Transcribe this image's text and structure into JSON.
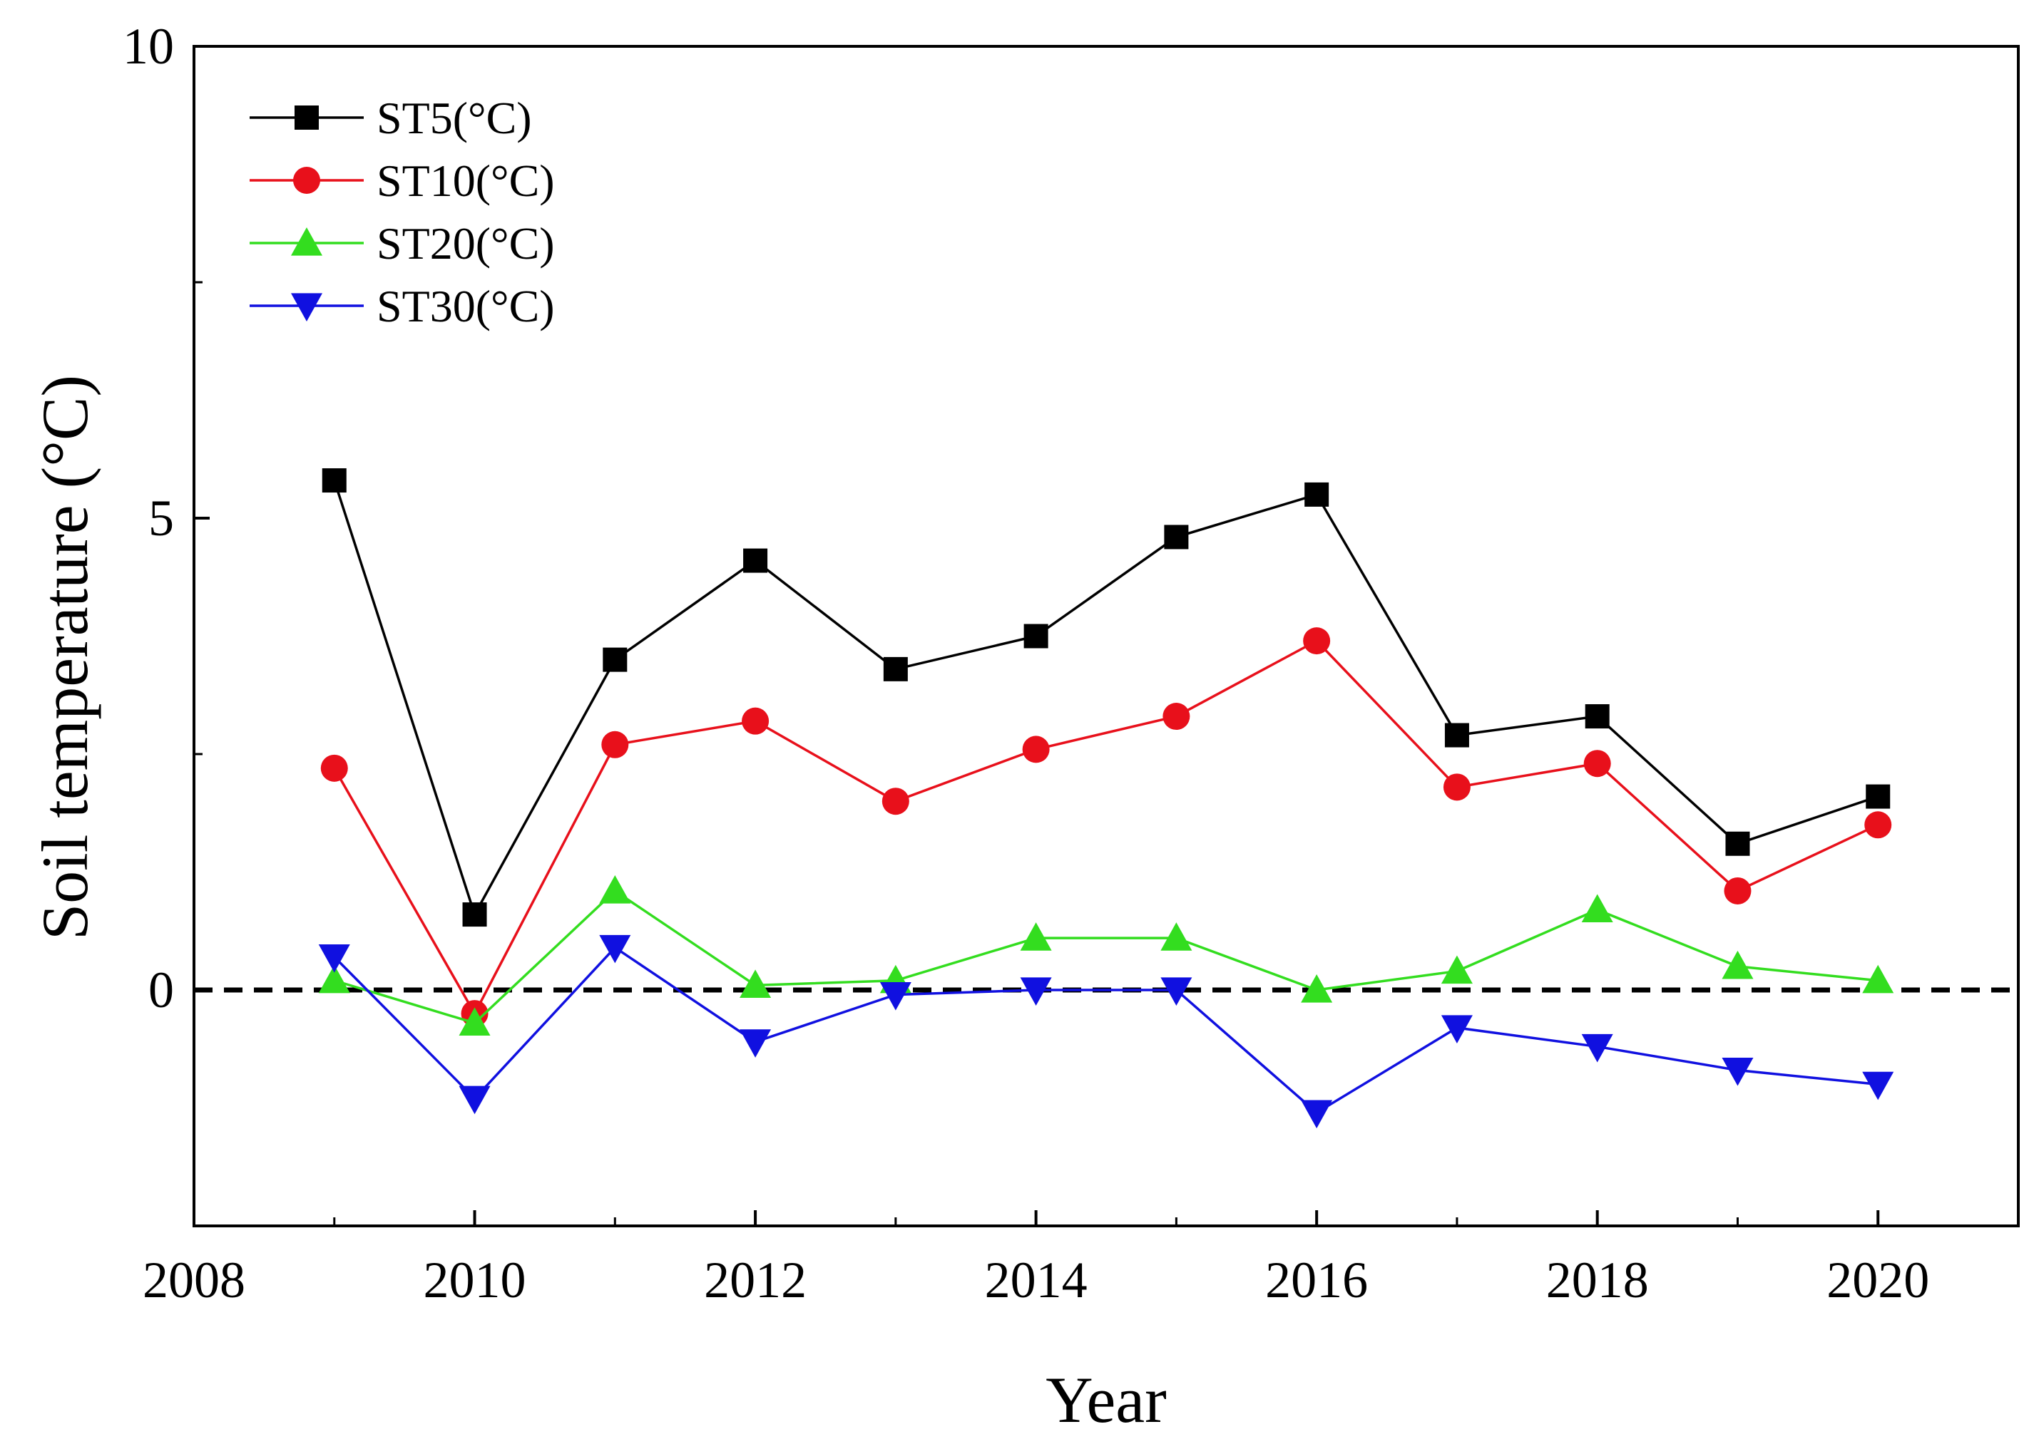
{
  "chart_data": {
    "type": "line",
    "title": "",
    "xlabel": "Year",
    "ylabel": "Soil temperature (°C)",
    "xlim": [
      2008,
      2021
    ],
    "ylim": [
      -2.5,
      10
    ],
    "xticks": [
      2008,
      2010,
      2012,
      2014,
      2016,
      2018,
      2020
    ],
    "yticks": [
      0,
      5,
      10
    ],
    "grid": false,
    "legend_position": "top-left",
    "reference_line": {
      "y": 0,
      "style": "dashed",
      "color": "#000000"
    },
    "x": [
      2009,
      2010,
      2011,
      2012,
      2013,
      2014,
      2015,
      2016,
      2017,
      2018,
      2019,
      2020
    ],
    "series": [
      {
        "name": "ST5(°C)",
        "color": "#000000",
        "marker": "square",
        "values": [
          5.4,
          0.8,
          3.5,
          4.55,
          3.4,
          3.75,
          4.8,
          5.25,
          2.7,
          2.9,
          1.55,
          2.05
        ]
      },
      {
        "name": "ST10(°C)",
        "color": "#e8101b",
        "marker": "circle",
        "values": [
          2.35,
          -0.25,
          2.6,
          2.85,
          2.0,
          2.55,
          2.9,
          3.7,
          2.15,
          2.4,
          1.05,
          1.75
        ]
      },
      {
        "name": "ST20(°C)",
        "color": "#33dd1f",
        "marker": "triangle-up",
        "values": [
          0.1,
          -0.35,
          1.05,
          0.05,
          0.1,
          0.55,
          0.55,
          0.0,
          0.2,
          0.85,
          0.25,
          0.1
        ]
      },
      {
        "name": "ST30(°C)",
        "color": "#1010e0",
        "marker": "triangle-down",
        "values": [
          0.35,
          -1.15,
          0.45,
          -0.55,
          -0.05,
          0.0,
          0.0,
          -1.3,
          -0.4,
          -0.6,
          -0.85,
          -1.0
        ]
      }
    ]
  }
}
